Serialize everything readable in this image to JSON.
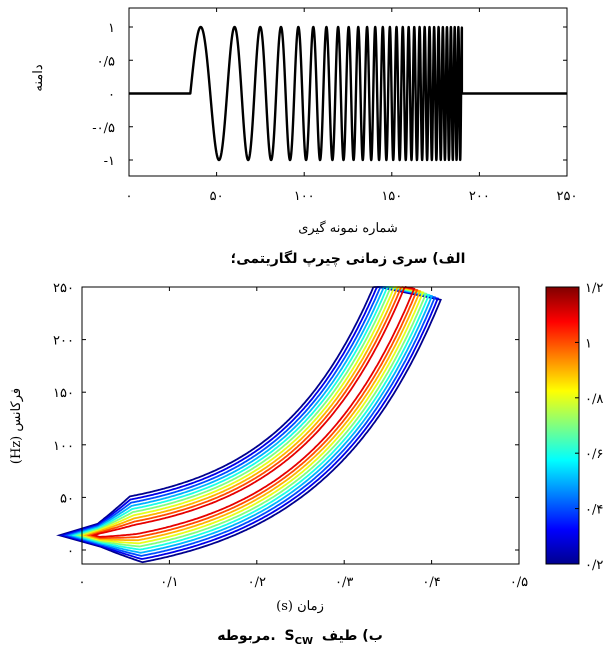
{
  "chart_data": [
    {
      "type": "line",
      "title": "",
      "caption": "الف) سری زمانی چیرپ لگاریتمی؛",
      "xlabel": "شماره نمونه گیری",
      "ylabel": "دامنه",
      "xlim": [
        0,
        250
      ],
      "ylim": [
        -1.2,
        1.2
      ],
      "x_ticks": [
        0,
        50,
        100,
        150,
        200,
        250
      ],
      "x_tick_labels": [
        "۰",
        "۵۰",
        "۱۰۰",
        "۱۵۰",
        "۲۰۰",
        "۲۵۰"
      ],
      "y_ticks": [
        1,
        0.5,
        0,
        -0.5,
        -1
      ],
      "y_tick_labels": [
        "۱",
        "۰/۵",
        "۰",
        "-۰/۵",
        "-۱"
      ],
      "signal": {
        "description_values": "logarithmic chirp",
        "zero_before": 35,
        "start": 35,
        "end": 190,
        "zero_after": 190,
        "amplitude": 1,
        "f_start_cycles_per_sample": 0.04,
        "f_end_cycles_per_sample": 0.5
      },
      "series_color": "#000000"
    },
    {
      "type": "heatmap",
      "title": "",
      "caption_prefix": "ب) طیف",
      "caption_symbol": "S",
      "caption_subscript": "CW",
      "caption_suffix": "مربوطه.",
      "xlabel": "زمان (s)",
      "ylabel": "فرکانس (Hz)",
      "xlim": [
        0,
        0.5
      ],
      "ylim": [
        0,
        250
      ],
      "x_ticks": [
        0,
        0.1,
        0.2,
        0.3,
        0.4,
        0.5
      ],
      "x_tick_labels": [
        "۰",
        "۰/۱",
        "۰/۲",
        "۰/۳",
        "۰/۴",
        "۰/۵"
      ],
      "y_ticks": [
        0,
        50,
        100,
        150,
        200,
        250
      ],
      "y_tick_labels": [
        "۰",
        "۵۰",
        "۱۰۰",
        "۱۵۰",
        "۲۰۰",
        "۲۵۰"
      ],
      "ridge": {
        "t_start": 0.02,
        "t_end": 0.375,
        "f_start": 14,
        "f_end": 250
      },
      "contour_levels": [
        0.2,
        0.3,
        0.4,
        0.5,
        0.6,
        0.7,
        0.8,
        0.9,
        1.0,
        1.1
      ],
      "colorbar": {
        "range": [
          0.2,
          1.2
        ],
        "ticks": [
          0.2,
          0.4,
          0.6,
          0.8,
          1.0,
          1.2
        ],
        "tick_labels": [
          "۰/۲",
          "۰/۴",
          "۰/۶",
          "۰/۸",
          "۱",
          "۱/۲"
        ]
      },
      "colormap": [
        "#00008f",
        "#0000ff",
        "#0080ff",
        "#00ffff",
        "#80ff80",
        "#ffff00",
        "#ff8000",
        "#ff0000",
        "#800000"
      ]
    }
  ]
}
